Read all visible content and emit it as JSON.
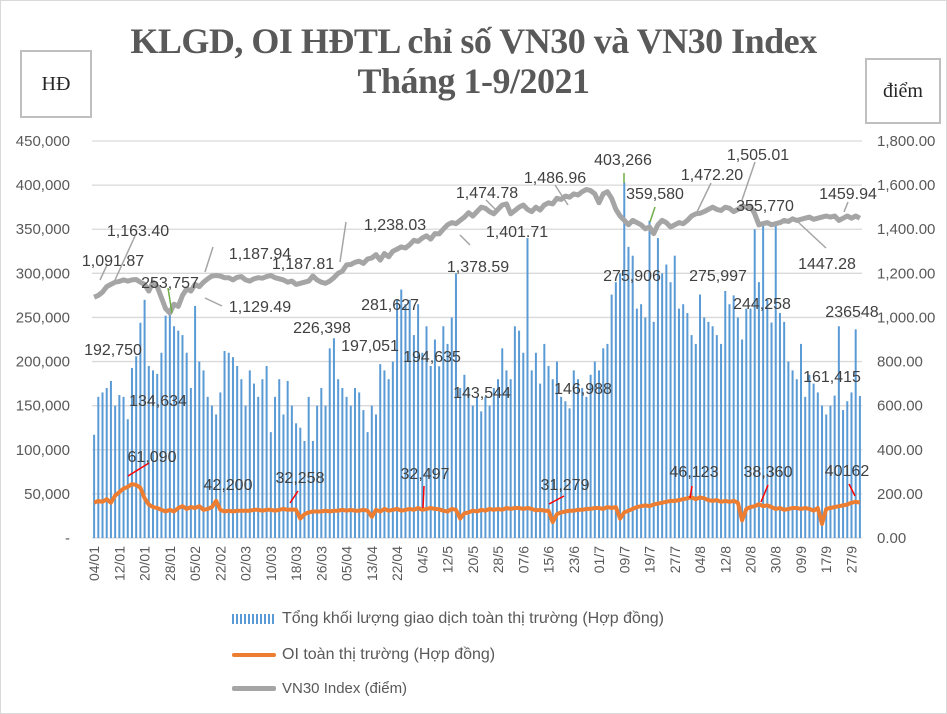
{
  "title_line1": "KLGD, OI HĐTL chỉ số VN30 và VN30 Index",
  "title_line2": "Tháng 1-9/2021",
  "left_unit": "HĐ",
  "right_unit": "điểm",
  "chart_data": {
    "type": "bar+line",
    "title": "KLGD, OI HĐTL chỉ số VN30 và VN30 Index Tháng 1-9/2021",
    "ylabel_left": "HĐ",
    "ylabel_right": "điểm",
    "ylim_left": [
      0,
      450000
    ],
    "ylim_right": [
      0,
      1800
    ],
    "y_ticks_left": [
      "-",
      "50,000",
      "100,000",
      "150,000",
      "200,000",
      "250,000",
      "300,000",
      "350,000",
      "400,000",
      "450,000"
    ],
    "y_ticks_right": [
      "0.00",
      "200.00",
      "400.00",
      "600.00",
      "800.00",
      "1,000.00",
      "1,200.00",
      "1,400.00",
      "1,600.00",
      "1,800.00"
    ],
    "x_tick_labels": [
      "04/01",
      "12/01",
      "20/01",
      "28/01",
      "05/02",
      "22/02",
      "02/03",
      "10/03",
      "18/03",
      "26/03",
      "05/04",
      "13/04",
      "22/04",
      "04/5",
      "12/5",
      "20/5",
      "28/5",
      "07/6",
      "15/6",
      "23/6",
      "01/7",
      "09/7",
      "19/7",
      "27/7",
      "04/8",
      "12/8",
      "20/8",
      "30/8",
      "09/9",
      "17/9",
      "27/9"
    ],
    "grid": true,
    "legend_position": "bottom",
    "colors": {
      "volume": "#5b9bd5",
      "oi": "#ed7d31",
      "vn30": "#a5a5a5"
    },
    "series": [
      {
        "name": "Tổng khối lượng giao dịch toàn thị trường (Hợp đồng)",
        "type": "bar",
        "axis": "left",
        "values": [
          117000,
          160000,
          165000,
          170000,
          178000,
          150000,
          162000,
          160000,
          134634,
          192750,
          206000,
          244000,
          270000,
          195000,
          190000,
          186000,
          210000,
          252000,
          253757,
          240000,
          235000,
          230000,
          210000,
          170000,
          263000,
          200000,
          190000,
          160000,
          150000,
          140000,
          165000,
          212000,
          210000,
          205000,
          195000,
          180000,
          150000,
          190000,
          175000,
          160000,
          180000,
          195000,
          120000,
          160000,
          180000,
          140000,
          178000,
          150000,
          130000,
          125000,
          110000,
          160000,
          110000,
          150000,
          170000,
          150000,
          215000,
          226398,
          180000,
          170000,
          160000,
          150000,
          170000,
          165000,
          145000,
          120000,
          150000,
          140000,
          197051,
          190000,
          180000,
          200000,
          270000,
          281627,
          265000,
          270000,
          230000,
          265000,
          210000,
          240000,
          195000,
          225000,
          194635,
          240000,
          220000,
          250000,
          300000,
          170000,
          185000,
          170000,
          150000,
          160000,
          143544,
          160000,
          150000,
          170000,
          180000,
          215000,
          190000,
          180000,
          240000,
          235000,
          210000,
          340000,
          190000,
          210000,
          175000,
          220000,
          195000,
          180000,
          200000,
          160000,
          155000,
          146988,
          190000,
          180000,
          170000,
          160000,
          185000,
          200000,
          190000,
          215000,
          220000,
          275906,
          290000,
          300000,
          403266,
          330000,
          320000,
          260000,
          265000,
          250000,
          359580,
          245000,
          340000,
          300000,
          310000,
          290000,
          320000,
          260000,
          265000,
          255000,
          230000,
          220000,
          275997,
          250000,
          245000,
          240000,
          230000,
          220000,
          280000,
          265000,
          275000,
          250000,
          225000,
          260000,
          260000,
          350000,
          290000,
          355770,
          270000,
          244258,
          355000,
          255000,
          245000,
          200000,
          190000,
          180000,
          220000,
          160000,
          185000,
          175000,
          165000,
          150000,
          140000,
          150000,
          161415,
          240000,
          145000,
          155000,
          165000,
          236548,
          161000
        ]
      },
      {
        "name": "OI toàn thị trường (Hợp đồng)",
        "type": "line",
        "axis": "left",
        "values": [
          40000,
          42000,
          41000,
          44000,
          40000,
          48000,
          52000,
          56000,
          58000,
          61090,
          60000,
          57000,
          45000,
          38000,
          35000,
          34000,
          32000,
          30000,
          32000,
          30000,
          34000,
          36000,
          33000,
          35000,
          34000,
          36000,
          32000,
          33000,
          35000,
          42200,
          32000,
          30000,
          31000,
          30000,
          31000,
          31000,
          31000,
          31000,
          32000,
          32000,
          31000,
          32000,
          32000,
          31000,
          32000,
          33000,
          32000,
          32258,
          32000,
          22000,
          27000,
          29000,
          30000,
          30000,
          30000,
          31000,
          30000,
          31000,
          31000,
          32000,
          31000,
          32000,
          31000,
          31000,
          32000,
          31000,
          24000,
          32000,
          30000,
          33000,
          31000,
          32000,
          33000,
          31000,
          32000,
          33000,
          32000,
          34000,
          32000,
          33000,
          34000,
          33000,
          32497,
          31000,
          30000,
          33000,
          32000,
          22000,
          28000,
          29000,
          31000,
          30000,
          32000,
          31000,
          33000,
          32000,
          33000,
          32000,
          34000,
          33000,
          34000,
          34000,
          33000,
          34000,
          33000,
          31279,
          32000,
          31000,
          31000,
          18000,
          27000,
          29000,
          30000,
          31000,
          31000,
          32000,
          32000,
          33000,
          33000,
          34000,
          34000,
          33000,
          35000,
          34000,
          35000,
          22000,
          29000,
          31000,
          33000,
          35000,
          36000,
          37000,
          36000,
          38000,
          39000,
          40000,
          41000,
          42000,
          42000,
          43000,
          44000,
          45000,
          46123,
          44000,
          46000,
          45000,
          43000,
          42000,
          43000,
          41000,
          42000,
          41000,
          42000,
          40000,
          20000,
          33000,
          35000,
          36000,
          38360,
          36000,
          37000,
          35000,
          33000,
          34000,
          32000,
          33000,
          34000,
          34000,
          33000,
          34000,
          33000,
          31000,
          34000,
          16000,
          33000,
          34000,
          35000,
          36000,
          37000,
          38000,
          40000,
          41000,
          40162
        ]
      },
      {
        "name": "VN30 Index (điểm)",
        "type": "line",
        "axis": "right",
        "values": [
          1091.87,
          1100,
          1115,
          1140,
          1150,
          1160,
          1163.4,
          1170,
          1165,
          1170,
          1172,
          1160,
          1150,
          1120,
          1160,
          1140,
          1090,
          1040,
          1020,
          1060,
          1050,
          1100,
          1129.49,
          1120,
          1150,
          1140,
          1160,
          1175,
          1187.94,
          1190,
          1188,
          1180,
          1180,
          1170,
          1182,
          1185,
          1170,
          1165,
          1175,
          1180,
          1178,
          1185,
          1190,
          1180,
          1175,
          1170,
          1160,
          1165,
          1150,
          1155,
          1160,
          1165,
          1187.81,
          1170,
          1160,
          1155,
          1165,
          1180,
          1200,
          1210,
          1238.03,
          1240,
          1250,
          1255,
          1245,
          1265,
          1270,
          1285,
          1260,
          1290,
          1275,
          1300,
          1310,
          1320,
          1315,
          1330,
          1350,
          1345,
          1360,
          1370,
          1355,
          1380,
          1378.59,
          1400,
          1420,
          1430,
          1425,
          1440,
          1455,
          1474.78,
          1460,
          1480,
          1500,
          1495,
          1480,
          1470,
          1490,
          1510,
          1515,
          1470,
          1485,
          1500,
          1510,
          1490,
          1480,
          1500,
          1486.96,
          1510,
          1520,
          1515,
          1540,
          1535,
          1550,
          1545,
          1560,
          1555,
          1570,
          1580,
          1575,
          1560,
          1520,
          1560,
          1570,
          1540,
          1490,
          1460,
          1440,
          1420,
          1440,
          1430,
          1420,
          1401.71,
          1410,
          1380,
          1420,
          1440,
          1430,
          1410,
          1420,
          1430,
          1425,
          1440,
          1460,
          1470,
          1472.2,
          1480,
          1490,
          1500,
          1490,
          1485,
          1500,
          1495,
          1480,
          1490,
          1505.01,
          1500,
          1505,
          1470,
          1420,
          1425,
          1430,
          1420,
          1425,
          1430,
          1440,
          1435,
          1447.28,
          1440,
          1445,
          1450,
          1455,
          1445,
          1450,
          1455,
          1460,
          1455,
          1460,
          1440,
          1450,
          1460,
          1450,
          1459.94,
          1450
        ]
      }
    ],
    "annotations": [
      "1,091.87",
      "1,163.40",
      "1,187.94",
      "1,187.81",
      "1,129.49",
      "1,238.03",
      "1,474.78",
      "1,486.96",
      "1,401.71",
      "1,378.59",
      "1,472.20",
      "1,505.01",
      "1447.28",
      "1459.94",
      "253,757",
      "226,398",
      "281,627",
      "197,051",
      "194,635",
      "192,750",
      "134,634",
      "143,544",
      "146,988",
      "403,266",
      "359,580",
      "275,906",
      "275,997",
      "244,258",
      "355,770",
      "161,415",
      "236548",
      "61,090",
      "42,200",
      "32,258",
      "32,497",
      "31,279",
      "46,123",
      "38,360",
      "40162"
    ]
  }
}
